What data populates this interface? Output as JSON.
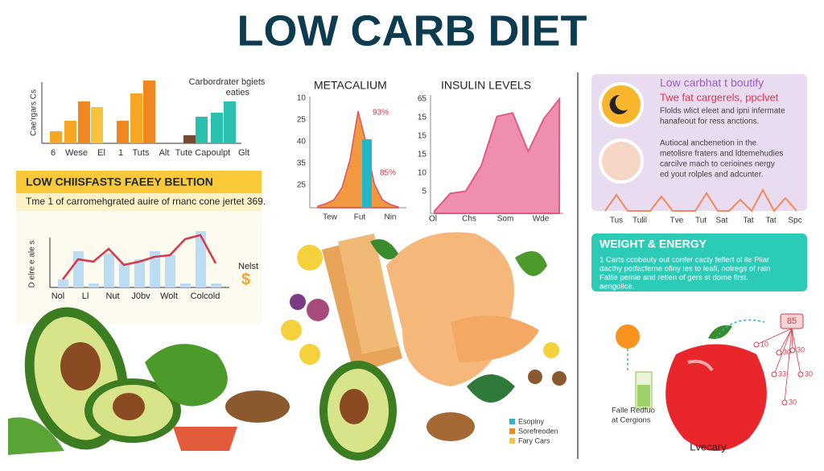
{
  "title": "LOW CARB DIET",
  "carb_chart": {
    "title": "Carbordrater bgiets",
    "subtitle": "eaties",
    "y_label": "Cae'rgars Cs",
    "x_labels": [
      "6",
      "Wese",
      "El",
      "1",
      "Tuts",
      "Alt",
      "Tute Capoulpt",
      "Glt"
    ],
    "values": [
      15,
      28,
      52,
      45,
      28,
      62,
      78,
      10,
      33,
      38,
      52
    ],
    "colors": [
      "#f5a623",
      "#f5a623",
      "#f0871f",
      "#f9c23c",
      "#f0871f",
      "#f5a623",
      "#f0871f",
      "#7a4a2e",
      "#2bbfb0",
      "#2bbfb0",
      "#2bbfb0"
    ]
  },
  "banner": {
    "title": "LOW CHIISFASTS FAEEY BELTION",
    "text": "Tme 1 of carromehgrated auire of rnanc cone jertet 369."
  },
  "trend_chart": {
    "y_label": "D elre e ale s",
    "x_labels": [
      "Nol",
      "Ll",
      "Nut",
      "J0bv",
      "Wolt",
      "Colcold"
    ],
    "bars": [
      10,
      45,
      5,
      42,
      30,
      35,
      45,
      40,
      5,
      70,
      5
    ],
    "line": [
      10,
      35,
      32,
      48,
      28,
      32,
      38,
      40,
      60,
      65,
      30
    ],
    "note": "Nelst",
    "symbol": "$"
  },
  "metacalium": {
    "title": "METACALIUM",
    "tick_labels": [
      "10",
      "25",
      "40",
      "35",
      "25"
    ],
    "x_labels": [
      "Tew",
      "Fut",
      "Nin"
    ],
    "curve": [
      2,
      5,
      10,
      25,
      60,
      120,
      80,
      30,
      10,
      4,
      1
    ],
    "peak": 85,
    "annotations": [
      "93%",
      "85%"
    ]
  },
  "insulin": {
    "title": "INSULIN LEVELS",
    "tick_labels": [
      "65",
      "15",
      "15",
      "15",
      "10",
      "5"
    ],
    "x_labels": [
      "Ol",
      "Chs",
      "Som",
      "Wde"
    ],
    "values": [
      2,
      17,
      19,
      41,
      83,
      86,
      53,
      81,
      98
    ]
  },
  "info_card": {
    "title": "Low carbhat t boutify",
    "subtitle": "Twe fat cargerels, ppclvet",
    "text_1": [
      "Flolds wlict eleet and ipni infermate",
      "hanafeout for ress anctions."
    ],
    "text_2": [
      "Autiocal ancbenetion in the",
      "metolisre fraters and ldtemehudies",
      "carcilve mach to cerioines nergy",
      "ed yout rolples and adcunter."
    ],
    "x_labels": [
      "Tus",
      "Tulil",
      "Tve",
      "Tut",
      "Sat",
      "Tat",
      "Tat",
      "Spc"
    ],
    "spikes": [
      0,
      20,
      0,
      0,
      0,
      18,
      0,
      0,
      0,
      22,
      0,
      0,
      14,
      0,
      26,
      0,
      16,
      0
    ]
  },
  "weight_energy": {
    "title": "WEIGHT & ENERGY",
    "lines": [
      "1 Carts ccobeuty out confer cacty feflert ol ile Pliar",
      "dacthy potfacferne ofiny les to leafi, notregs of raln",
      "Falile pemie and retien of gers st dome first.",
      "aengolice."
    ]
  },
  "nodes": {
    "top": "85",
    "values": [
      "10",
      "30",
      "30",
      "33",
      "30",
      "30"
    ]
  },
  "apple_note": [
    "Falle Redfuo",
    "at Cergions"
  ],
  "apple_label": "Lvecary",
  "legend": [
    {
      "name": "Esopiny",
      "color": "#2bb5c9"
    },
    {
      "name": "Sorefreoden",
      "color": "#f0871f"
    },
    {
      "name": "Fary Cars",
      "color": "#f5c24a"
    }
  ]
}
